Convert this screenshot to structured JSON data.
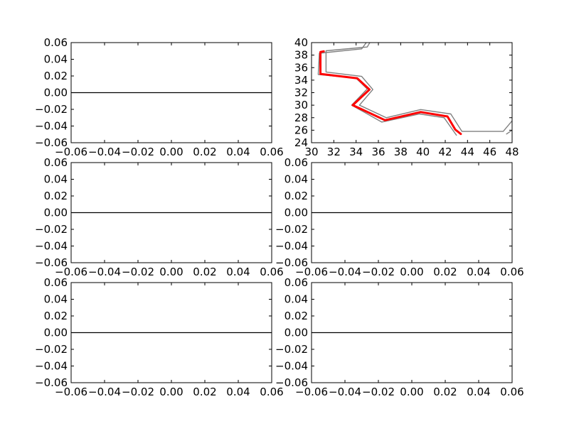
{
  "figure": {
    "background": "#ffffff"
  },
  "chart_data": [
    {
      "type": "line",
      "panel": "row1-col1",
      "title": "",
      "xlabel": "",
      "ylabel": "",
      "xlim": [
        -0.06,
        0.06
      ],
      "ylim": [
        -0.06,
        0.06
      ],
      "xticks": [
        -0.06,
        -0.04,
        -0.02,
        0.0,
        0.02,
        0.04,
        0.06
      ],
      "yticks": [
        -0.06,
        -0.04,
        -0.02,
        0.0,
        0.02,
        0.04,
        0.06
      ],
      "xtick_labels": [
        "−0.06",
        "−0.04",
        "−0.02",
        "0.00",
        "0.02",
        "0.04",
        "0.06"
      ],
      "ytick_labels": [
        "−0.06",
        "−0.04",
        "−0.02",
        "0.00",
        "0.02",
        "0.04",
        "0.06"
      ],
      "grid": false,
      "series": [
        {
          "color": "#000000",
          "width": 1.2,
          "points": [
            [
              -0.06,
              0
            ],
            [
              0.06,
              0
            ]
          ]
        }
      ]
    },
    {
      "type": "line",
      "panel": "row1-col2",
      "title": "",
      "xlabel": "",
      "ylabel": "",
      "xlim": [
        30,
        48
      ],
      "ylim": [
        24,
        40
      ],
      "xticks": [
        30,
        32,
        34,
        36,
        38,
        40,
        42,
        44,
        46,
        48
      ],
      "yticks": [
        24,
        26,
        28,
        30,
        32,
        34,
        36,
        38,
        40
      ],
      "xtick_labels": [
        "30",
        "32",
        "34",
        "36",
        "38",
        "40",
        "42",
        "44",
        "46",
        "48"
      ],
      "ytick_labels": [
        "24",
        "26",
        "28",
        "30",
        "32",
        "34",
        "36",
        "38",
        "40"
      ],
      "grid": false,
      "series": [
        {
          "color": "#808080",
          "width": 1.4,
          "points": [
            [
              35.3,
              40.2
            ],
            [
              35.0,
              39.3
            ],
            [
              31.3,
              38.7
            ],
            [
              31.3,
              35.3
            ],
            [
              34.5,
              34.6
            ],
            [
              35.5,
              32.5
            ],
            [
              34.3,
              30.0
            ],
            [
              36.7,
              28.0
            ],
            [
              39.8,
              29.3
            ],
            [
              42.5,
              28.6
            ],
            [
              43.5,
              25.8
            ],
            [
              47.2,
              25.8
            ],
            [
              48.0,
              27.5
            ]
          ]
        },
        {
          "color": "#808080",
          "width": 1.4,
          "points": [
            [
              35.0,
              40.2
            ],
            [
              34.5,
              39.0
            ],
            [
              30.7,
              38.3
            ],
            [
              30.6,
              34.9
            ],
            [
              34.0,
              34.3
            ],
            [
              35.0,
              32.6
            ],
            [
              33.6,
              30.0
            ],
            [
              36.3,
              27.3
            ],
            [
              39.7,
              28.6
            ],
            [
              41.9,
              28.0
            ],
            [
              43.0,
              25.2
            ]
          ]
        },
        {
          "color": "#808080",
          "width": 1.4,
          "points": [
            [
              47.5,
              25.4
            ],
            [
              48.0,
              26.0
            ]
          ]
        },
        {
          "color": "#ff0000",
          "width": 3,
          "points": [
            [
              31.1,
              38.6
            ],
            [
              30.8,
              38.5
            ],
            [
              30.8,
              35.0
            ],
            [
              34.1,
              34.3
            ],
            [
              35.2,
              32.5
            ],
            [
              33.7,
              30.0
            ],
            [
              36.6,
              27.6
            ],
            [
              39.8,
              28.9
            ],
            [
              42.2,
              28.2
            ],
            [
              42.9,
              26.1
            ],
            [
              43.4,
              25.4
            ]
          ]
        }
      ]
    },
    {
      "type": "line",
      "panel": "row2-col1",
      "title": "",
      "xlabel": "",
      "ylabel": "",
      "xlim": [
        -0.06,
        0.06
      ],
      "ylim": [
        -0.06,
        0.06
      ],
      "xticks": [
        -0.06,
        -0.04,
        -0.02,
        0.0,
        0.02,
        0.04,
        0.06
      ],
      "yticks": [
        -0.06,
        -0.04,
        -0.02,
        0.0,
        0.02,
        0.04,
        0.06
      ],
      "xtick_labels": [
        "−0.06",
        "−0.04",
        "−0.02",
        "0.00",
        "0.02",
        "0.04",
        "0.06"
      ],
      "ytick_labels": [
        "−0.06",
        "−0.04",
        "−0.02",
        "0.00",
        "0.02",
        "0.04",
        "0.06"
      ],
      "grid": false,
      "series": [
        {
          "color": "#000000",
          "width": 1.2,
          "points": [
            [
              -0.06,
              0
            ],
            [
              0.06,
              0
            ]
          ]
        }
      ]
    },
    {
      "type": "line",
      "panel": "row2-col2",
      "title": "",
      "xlabel": "",
      "ylabel": "",
      "xlim": [
        -0.06,
        0.06
      ],
      "ylim": [
        -0.06,
        0.06
      ],
      "xticks": [
        -0.06,
        -0.04,
        -0.02,
        0.0,
        0.02,
        0.04,
        0.06
      ],
      "yticks": [
        -0.06,
        -0.04,
        -0.02,
        0.0,
        0.02,
        0.04,
        0.06
      ],
      "xtick_labels": [
        "−0.06",
        "−0.04",
        "−0.02",
        "0.00",
        "0.02",
        "0.04",
        "0.06"
      ],
      "ytick_labels": [
        "−0.06",
        "−0.04",
        "−0.02",
        "0.00",
        "0.02",
        "0.04",
        "0.06"
      ],
      "grid": false,
      "series": [
        {
          "color": "#000000",
          "width": 1.2,
          "points": [
            [
              -0.06,
              0
            ],
            [
              0.06,
              0
            ]
          ]
        }
      ]
    },
    {
      "type": "line",
      "panel": "row3-col1",
      "title": "",
      "xlabel": "",
      "ylabel": "",
      "xlim": [
        -0.06,
        0.06
      ],
      "ylim": [
        -0.06,
        0.06
      ],
      "xticks": [
        -0.06,
        -0.04,
        -0.02,
        0.0,
        0.02,
        0.04,
        0.06
      ],
      "yticks": [
        -0.06,
        -0.04,
        -0.02,
        0.0,
        0.02,
        0.04,
        0.06
      ],
      "xtick_labels": [
        "−0.06",
        "−0.04",
        "−0.02",
        "0.00",
        "0.02",
        "0.04",
        "0.06"
      ],
      "ytick_labels": [
        "−0.06",
        "−0.04",
        "−0.02",
        "0.00",
        "0.02",
        "0.04",
        "0.06"
      ],
      "grid": false,
      "series": [
        {
          "color": "#000000",
          "width": 1.2,
          "points": [
            [
              -0.06,
              0
            ],
            [
              0.06,
              0
            ]
          ]
        }
      ]
    },
    {
      "type": "line",
      "panel": "row3-col2",
      "title": "",
      "xlabel": "",
      "ylabel": "",
      "xlim": [
        -0.06,
        0.06
      ],
      "ylim": [
        -0.06,
        0.06
      ],
      "xticks": [
        -0.06,
        -0.04,
        -0.02,
        0.0,
        0.02,
        0.04,
        0.06
      ],
      "yticks": [
        -0.06,
        -0.04,
        -0.02,
        0.0,
        0.02,
        0.04,
        0.06
      ],
      "xtick_labels": [
        "−0.06",
        "−0.04",
        "−0.02",
        "0.00",
        "0.02",
        "0.04",
        "0.06"
      ],
      "ytick_labels": [
        "−0.06",
        "−0.04",
        "−0.02",
        "0.00",
        "0.02",
        "0.04",
        "0.06"
      ],
      "grid": false,
      "series": [
        {
          "color": "#000000",
          "width": 1.2,
          "points": [
            [
              -0.06,
              0
            ],
            [
              0.06,
              0
            ]
          ]
        }
      ]
    }
  ]
}
